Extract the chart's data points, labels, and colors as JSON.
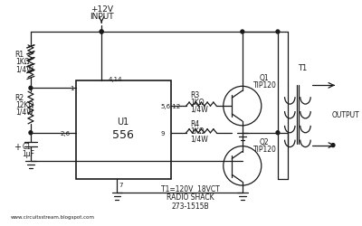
{
  "bg_color": "#ffffff",
  "line_color": "#1a1a1a",
  "text_color": "#1a1a1a",
  "watermark": "www.circuitsstream.blogspot.com",
  "bottom_text1": "T1=120V  18VCT",
  "bottom_text2": "RADIO SHACK",
  "bottom_text3": "273-1515B",
  "output_label": "OUTPUT"
}
